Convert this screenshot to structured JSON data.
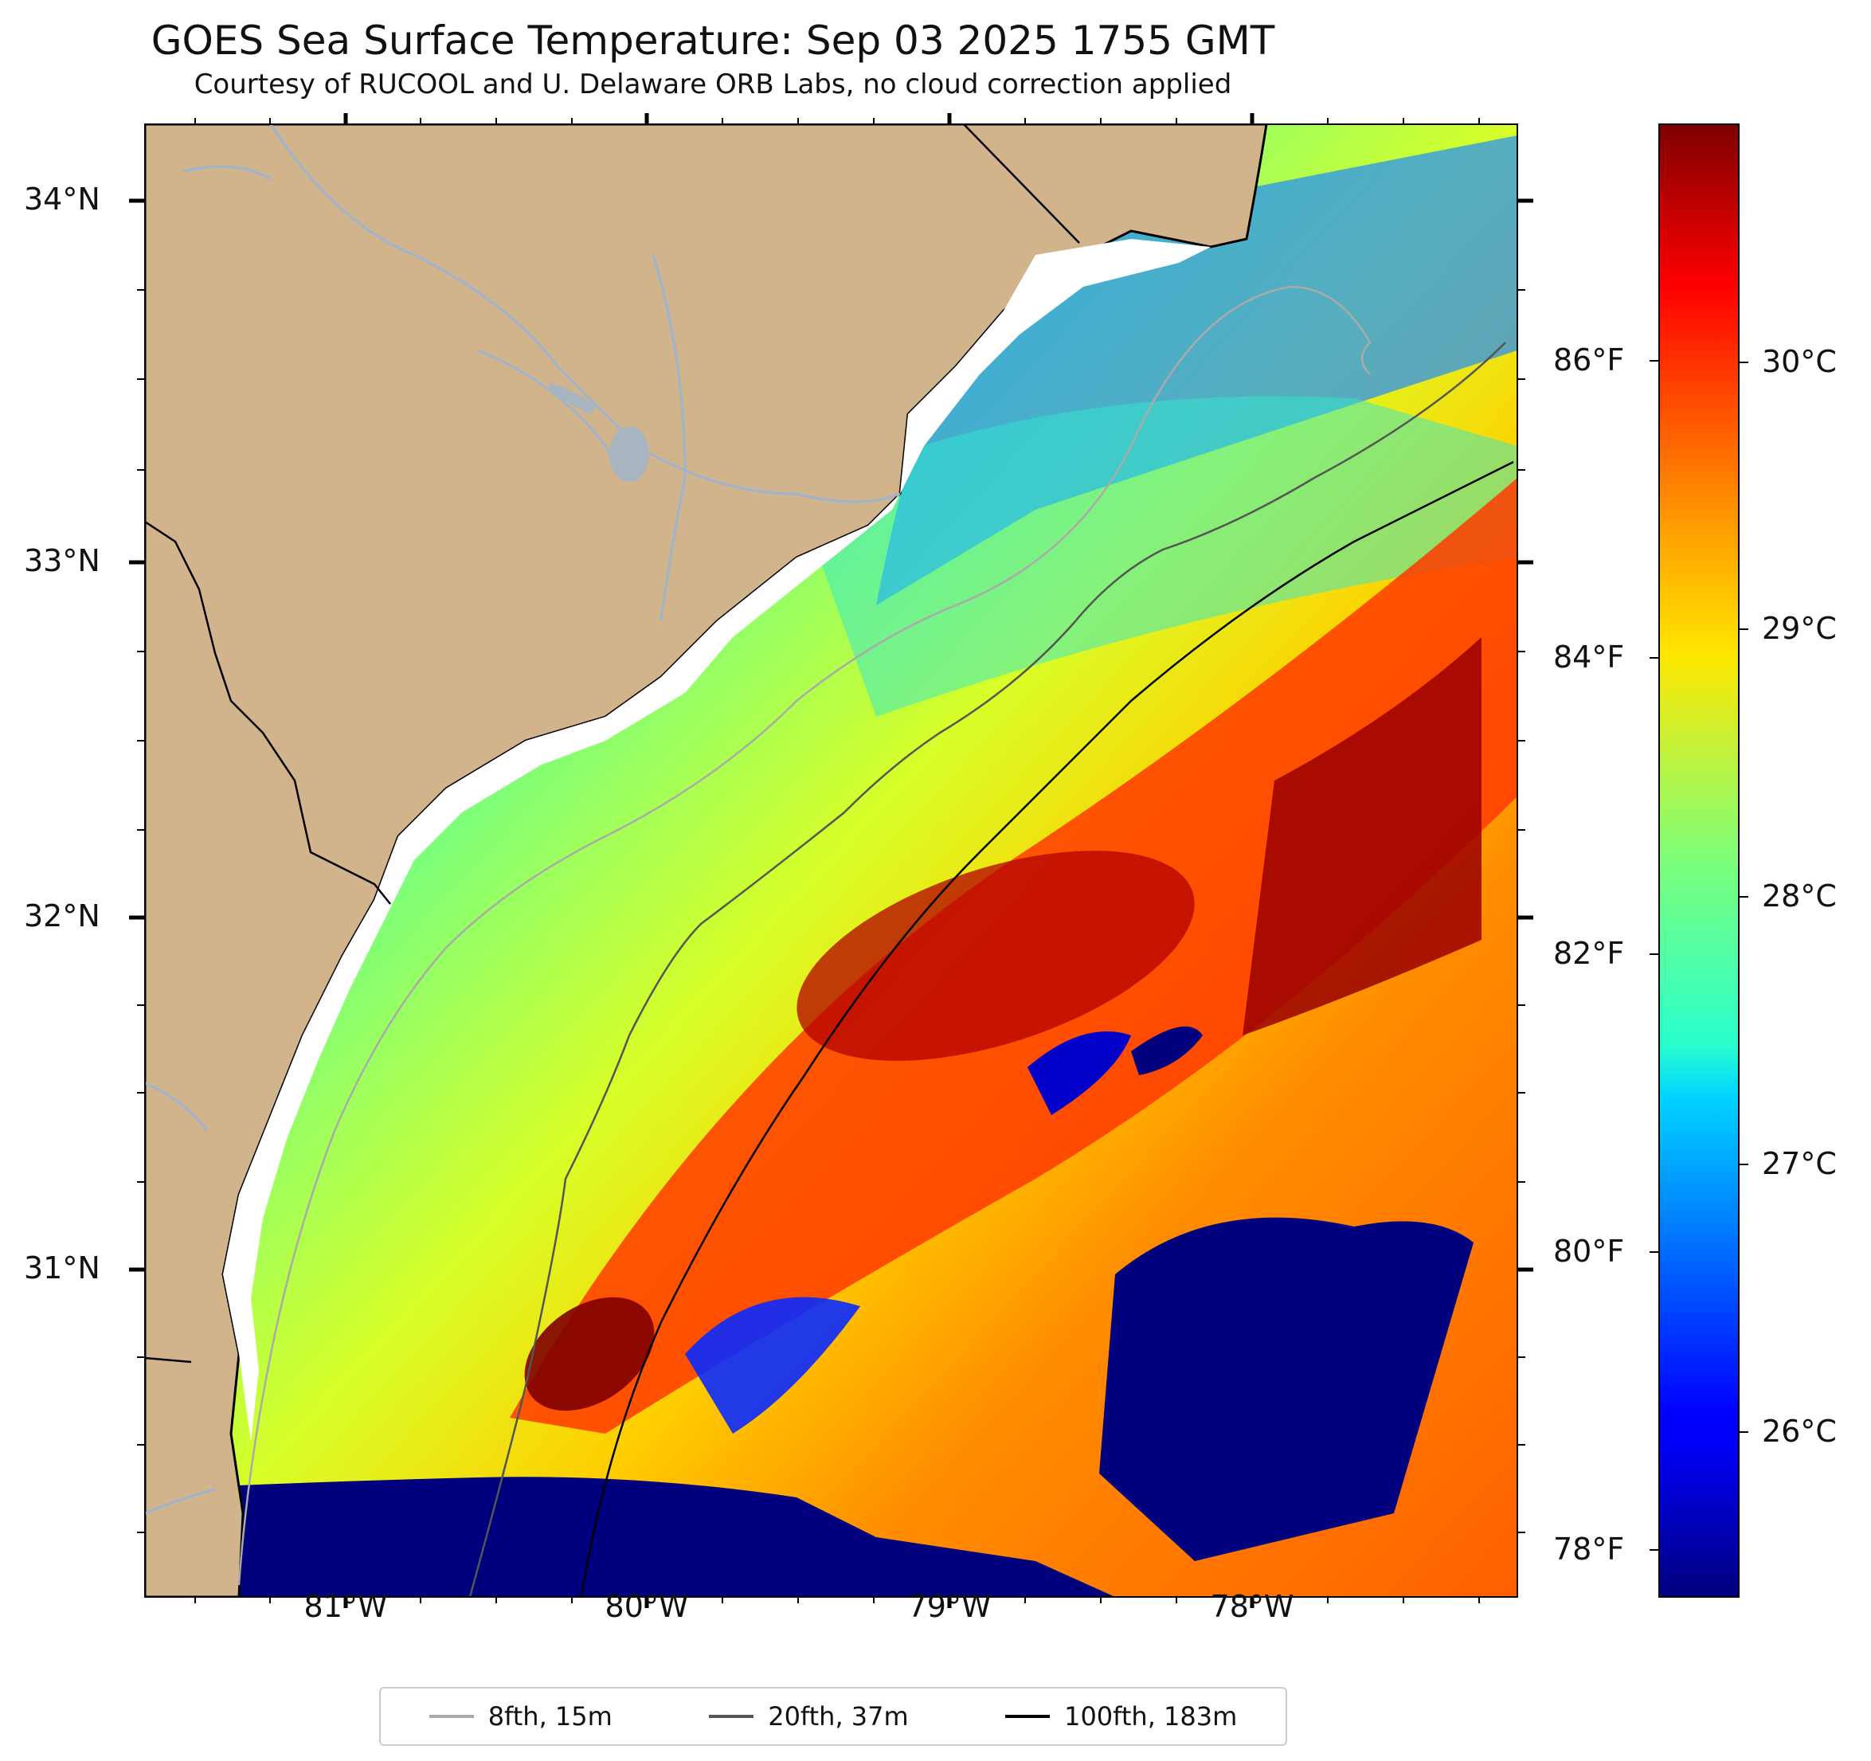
{
  "title": "GOES Sea Surface Temperature: Sep 03 2025 1755 GMT",
  "subtitle": "Courtesy of RUCOOL and U. Delaware ORB Labs, no cloud correction applied",
  "latitude_labels": [
    "34°N",
    "33°N",
    "32°N",
    "31°N"
  ],
  "longitude_labels": [
    "81°W",
    "80°W",
    "79°W",
    "78°W"
  ],
  "colorbar": {
    "fahrenheit_labels": [
      "86°F",
      "84°F",
      "82°F",
      "80°F",
      "78°F"
    ],
    "celsius_labels": [
      "30°C",
      "29°C",
      "28°C",
      "27°C",
      "26°C"
    ],
    "colormap": "jet",
    "range_celsius": [
      25.4,
      30.9
    ]
  },
  "legend": [
    {
      "label": "8fth, 15m",
      "color": "#aaaaaa"
    },
    {
      "label": "20fth, 37m",
      "color": "#555555"
    },
    {
      "label": "100fth, 183m",
      "color": "#000000"
    }
  ],
  "colors": {
    "land": "#d2b48c",
    "rivers": "#9db3cf",
    "cold_water": "#00007f"
  }
}
